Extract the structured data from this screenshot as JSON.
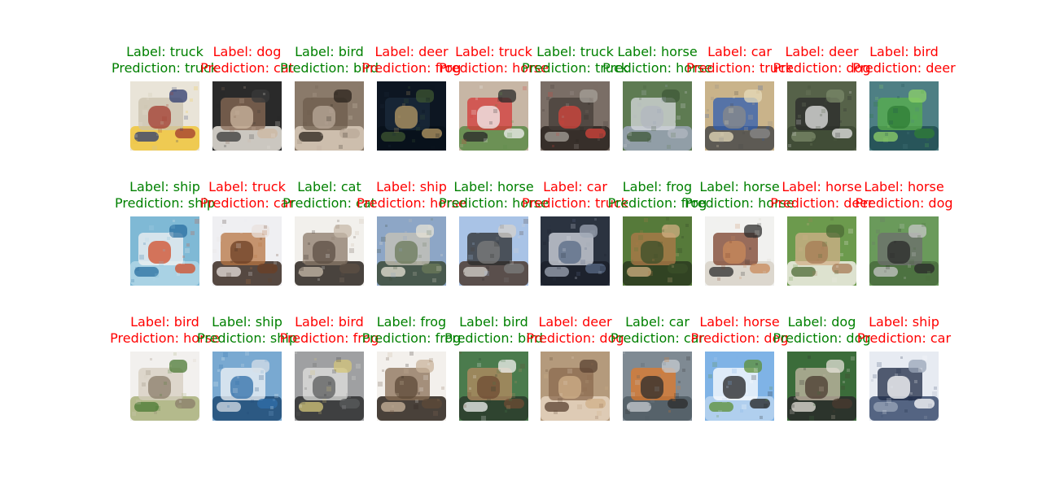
{
  "chart_data": {
    "type": "image_grid",
    "rows": 3,
    "cols": 10,
    "colors": {
      "correct": "#008000",
      "incorrect": "#ff0000"
    },
    "items": [
      {
        "label_text": "Label: truck",
        "prediction_text": "Prediction: truck",
        "correct": true
      },
      {
        "label_text": "Label: dog",
        "prediction_text": "Prediction: cat",
        "correct": false
      },
      {
        "label_text": "Label: bird",
        "prediction_text": "Prediction: bird",
        "correct": true
      },
      {
        "label_text": "Label: deer",
        "prediction_text": "Prediction: frog",
        "correct": false
      },
      {
        "label_text": "Label: truck",
        "prediction_text": "Prediction: horse",
        "correct": false
      },
      {
        "label_text": "Label: truck",
        "prediction_text": "Prediction: truck",
        "correct": true
      },
      {
        "label_text": "Label: horse",
        "prediction_text": "Prediction: horse",
        "correct": true
      },
      {
        "label_text": "Label: car",
        "prediction_text": "Prediction: truck",
        "correct": false
      },
      {
        "label_text": "Label: deer",
        "prediction_text": "Prediction: dog",
        "correct": false
      },
      {
        "label_text": "Label: bird",
        "prediction_text": "Prediction: deer",
        "correct": false
      },
      {
        "label_text": "Label: ship",
        "prediction_text": "Prediction: ship",
        "correct": true
      },
      {
        "label_text": "Label: truck",
        "prediction_text": "Prediction: car",
        "correct": false
      },
      {
        "label_text": "Label: cat",
        "prediction_text": "Prediction: cat",
        "correct": true
      },
      {
        "label_text": "Label: ship",
        "prediction_text": "Prediction: horse",
        "correct": false
      },
      {
        "label_text": "Label: horse",
        "prediction_text": "Prediction: horse",
        "correct": true
      },
      {
        "label_text": "Label: car",
        "prediction_text": "Prediction: truck",
        "correct": false
      },
      {
        "label_text": "Label: frog",
        "prediction_text": "Prediction: frog",
        "correct": true
      },
      {
        "label_text": "Label: horse",
        "prediction_text": "Prediction: horse",
        "correct": true
      },
      {
        "label_text": "Label: horse",
        "prediction_text": "Prediction: deer",
        "correct": false
      },
      {
        "label_text": "Label: horse",
        "prediction_text": "Prediction: dog",
        "correct": false
      },
      {
        "label_text": "Label: bird",
        "prediction_text": "Prediction: horse",
        "correct": false
      },
      {
        "label_text": "Label: ship",
        "prediction_text": "Prediction: ship",
        "correct": true
      },
      {
        "label_text": "Label: bird",
        "prediction_text": "Prediction: frog",
        "correct": false
      },
      {
        "label_text": "Label: frog",
        "prediction_text": "Prediction: frog",
        "correct": true
      },
      {
        "label_text": "Label: bird",
        "prediction_text": "Prediction: bird",
        "correct": true
      },
      {
        "label_text": "Label: deer",
        "prediction_text": "Prediction: dog",
        "correct": false
      },
      {
        "label_text": "Label: car",
        "prediction_text": "Prediction: car",
        "correct": true
      },
      {
        "label_text": "Label: horse",
        "prediction_text": "Prediction: dog",
        "correct": false
      },
      {
        "label_text": "Label: dog",
        "prediction_text": "Prediction: dog",
        "correct": true
      },
      {
        "label_text": "Label: ship",
        "prediction_text": "Prediction: car",
        "correct": false
      }
    ]
  }
}
